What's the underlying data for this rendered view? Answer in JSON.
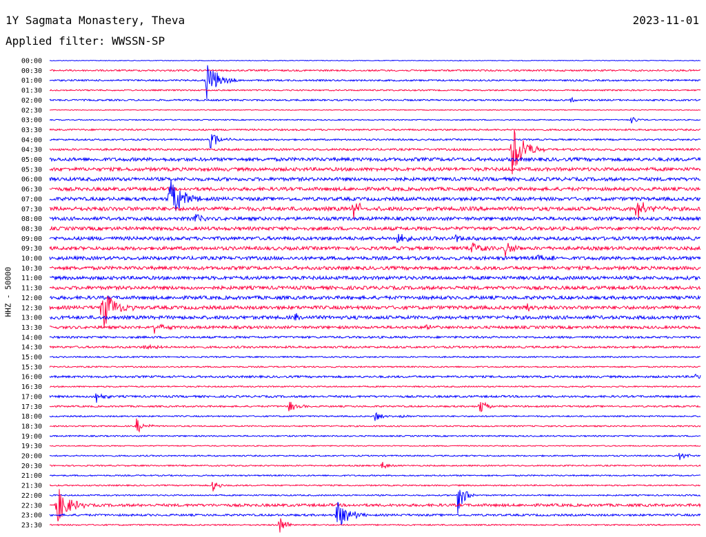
{
  "header": {
    "title": "1Y Sagmata Monastery, Theva",
    "date": "2023-11-01",
    "filter": "Applied filter: WWSSN-SP"
  },
  "chart_data": {
    "type": "line",
    "title": "1Y Sagmata Monastery, Theva",
    "ylabel": "HHZ - 50000",
    "colors": [
      "#0000ff",
      "#ff0040"
    ],
    "row_labels": [
      "00:00",
      "00:30",
      "01:00",
      "01:30",
      "02:00",
      "02:30",
      "03:00",
      "03:30",
      "04:00",
      "04:30",
      "05:00",
      "05:30",
      "06:00",
      "06:30",
      "07:00",
      "07:30",
      "08:00",
      "08:30",
      "09:00",
      "09:30",
      "10:00",
      "10:30",
      "11:00",
      "11:30",
      "12:00",
      "12:30",
      "13:00",
      "13:30",
      "14:00",
      "14:30",
      "15:00",
      "15:30",
      "16:00",
      "16:30",
      "17:00",
      "17:30",
      "18:00",
      "18:30",
      "19:00",
      "19:30",
      "20:00",
      "20:30",
      "21:00",
      "21:30",
      "22:00",
      "22:30",
      "23:00",
      "23:30"
    ],
    "minutes_per_row": 30,
    "noise_level": [
      0.5,
      1.2,
      1.2,
      1.0,
      1.2,
      0.6,
      0.8,
      1.2,
      1.2,
      1.5,
      2.5,
      2.5,
      2.5,
      2.5,
      2.5,
      2.8,
      2.5,
      2.5,
      2.5,
      2.5,
      2.5,
      2.5,
      2.5,
      2.5,
      2.5,
      2.5,
      2.5,
      2.0,
      1.5,
      1.5,
      1.0,
      1.0,
      1.5,
      1.0,
      1.5,
      1.2,
      1.0,
      1.0,
      1.0,
      0.8,
      1.0,
      1.0,
      1.0,
      1.0,
      1.0,
      2.0,
      1.5,
      1.0
    ],
    "events": [
      {
        "row": 2,
        "minute": 7.2,
        "amplitude": 30,
        "duration": 1.5
      },
      {
        "row": 4,
        "minute": 24.0,
        "amplitude": 4,
        "duration": 0.8
      },
      {
        "row": 6,
        "minute": 26.8,
        "amplitude": 6,
        "duration": 0.8
      },
      {
        "row": 8,
        "minute": 7.4,
        "amplitude": 12,
        "duration": 1.2
      },
      {
        "row": 9,
        "minute": 21.3,
        "amplitude": 45,
        "duration": 1.5
      },
      {
        "row": 14,
        "minute": 5.5,
        "amplitude": 40,
        "duration": 1.5
      },
      {
        "row": 15,
        "minute": 14.0,
        "amplitude": 16,
        "duration": 1.2
      },
      {
        "row": 15,
        "minute": 27.0,
        "amplitude": 16,
        "duration": 1.5
      },
      {
        "row": 16,
        "minute": 6.7,
        "amplitude": 8,
        "duration": 0.8
      },
      {
        "row": 18,
        "minute": 16.0,
        "amplitude": 10,
        "duration": 1.0
      },
      {
        "row": 18,
        "minute": 18.7,
        "amplitude": 8,
        "duration": 1.0
      },
      {
        "row": 19,
        "minute": 19.4,
        "amplitude": 12,
        "duration": 1.0
      },
      {
        "row": 19,
        "minute": 21.0,
        "amplitude": 12,
        "duration": 1.0
      },
      {
        "row": 20,
        "minute": 22.5,
        "amplitude": 10,
        "duration": 0.6
      },
      {
        "row": 20,
        "minute": 23.2,
        "amplitude": 8,
        "duration": 0.6
      },
      {
        "row": 25,
        "minute": 2.4,
        "amplitude": 35,
        "duration": 1.5
      },
      {
        "row": 25,
        "minute": 22.0,
        "amplitude": 8,
        "duration": 0.8
      },
      {
        "row": 26,
        "minute": 11.3,
        "amplitude": 6,
        "duration": 0.8
      },
      {
        "row": 27,
        "minute": 4.8,
        "amplitude": 10,
        "duration": 1.0
      },
      {
        "row": 27,
        "minute": 17.3,
        "amplitude": 4,
        "duration": 0.8
      },
      {
        "row": 29,
        "minute": 4.3,
        "amplitude": 5,
        "duration": 1.5
      },
      {
        "row": 32,
        "minute": 29.7,
        "amplitude": 6,
        "duration": 0.5
      },
      {
        "row": 34,
        "minute": 2.1,
        "amplitude": 12,
        "duration": 1.0
      },
      {
        "row": 35,
        "minute": 11.0,
        "amplitude": 10,
        "duration": 1.0
      },
      {
        "row": 35,
        "minute": 19.8,
        "amplitude": 12,
        "duration": 1.0
      },
      {
        "row": 36,
        "minute": 15.0,
        "amplitude": 8,
        "duration": 1.0
      },
      {
        "row": 36,
        "minute": 16.1,
        "amplitude": 4,
        "duration": 0.8
      },
      {
        "row": 37,
        "minute": 4.0,
        "amplitude": 12,
        "duration": 1.0
      },
      {
        "row": 40,
        "minute": 29.0,
        "amplitude": 6,
        "duration": 1.0
      },
      {
        "row": 41,
        "minute": 15.3,
        "amplitude": 6,
        "duration": 0.8
      },
      {
        "row": 43,
        "minute": 7.5,
        "amplitude": 10,
        "duration": 0.8
      },
      {
        "row": 44,
        "minute": 18.8,
        "amplitude": 30,
        "duration": 0.8
      },
      {
        "row": 45,
        "minute": 0.3,
        "amplitude": 30,
        "duration": 1.5
      },
      {
        "row": 46,
        "minute": 13.2,
        "amplitude": 25,
        "duration": 1.5
      },
      {
        "row": 47,
        "minute": 10.6,
        "amplitude": 15,
        "duration": 0.8
      }
    ]
  }
}
